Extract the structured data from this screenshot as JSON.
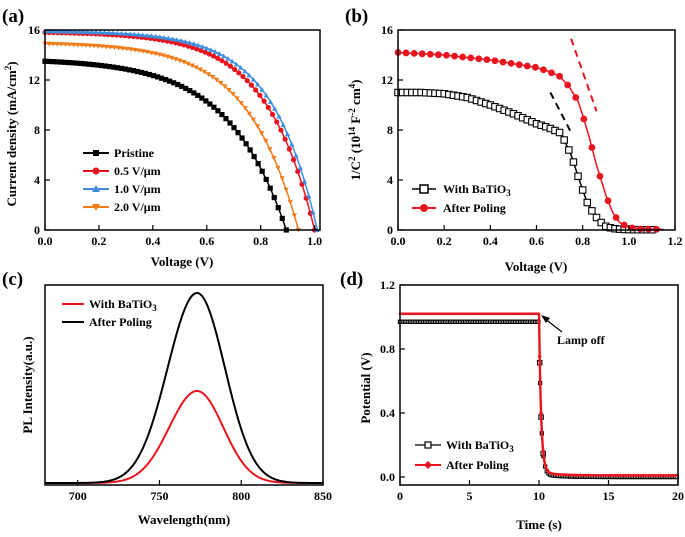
{
  "colors": {
    "black": "#000000",
    "red": "#e8141e",
    "blue": "#3d8fe0",
    "orange": "#f07c1a",
    "red_line": "#e62020"
  },
  "chart_data": [
    {
      "panel_label": "(a)",
      "type": "line",
      "xlabel": "Voltage (V)",
      "ylabel": "Current density (mA/cm²)",
      "ylabel_text": "Current density (mA/cm",
      "ylabel_sup": "2",
      "ylabel_end": ")",
      "xlim": [
        0.0,
        1.02
      ],
      "ylim": [
        0,
        16
      ],
      "xticks": [
        "0.0",
        "0.2",
        "0.4",
        "0.6",
        "0.8",
        "1.0"
      ],
      "yticks": [
        "0",
        "4",
        "8",
        "12",
        "16"
      ],
      "legend_position": "bottom-left",
      "series": [
        {
          "name": "Pristine",
          "marker": "square",
          "color": "black",
          "isc": 13.5,
          "voc": 0.895,
          "ideality": 4.2,
          "n_markers": 60
        },
        {
          "name": "0.5 V/μm",
          "marker": "circle",
          "color": "red",
          "isc": 15.8,
          "voc": 1.0,
          "ideality": 5.6,
          "n_markers": 64
        },
        {
          "name": "1.0 V/μm",
          "marker": "triangle-up",
          "color": "blue",
          "isc": 15.9,
          "voc": 1.01,
          "ideality": 6.0,
          "n_markers": 64
        },
        {
          "name": "2.0 V/μm",
          "marker": "triangle-down",
          "color": "orange",
          "isc": 14.9,
          "voc": 0.94,
          "ideality": 5.0,
          "n_markers": 62
        }
      ]
    },
    {
      "panel_label": "(b)",
      "type": "line",
      "xlabel": "Voltage (V)",
      "ylabel": "1/C² (10¹⁴ F⁻² cm⁴)",
      "ylabel_parts": [
        "1/C",
        "2",
        " (10",
        "14",
        " F",
        "-2",
        " cm",
        "4",
        ")"
      ],
      "xlim": [
        0.0,
        1.2
      ],
      "ylim": [
        0,
        16
      ],
      "xticks": [
        "0.0",
        "0.2",
        "0.4",
        "0.6",
        "0.8",
        "1.0",
        "1.2"
      ],
      "yticks": [
        "0",
        "4",
        "8",
        "12",
        "16"
      ],
      "legend_position": "bottom-left",
      "series": [
        {
          "name": "With BaTiO",
          "name_sub": "3",
          "marker": "open-square",
          "color": "black",
          "x": [
            0.0,
            0.1,
            0.2,
            0.3,
            0.4,
            0.5,
            0.6,
            0.65,
            0.7,
            0.72,
            0.75,
            0.78,
            0.8,
            0.82,
            0.85,
            0.88,
            0.9,
            0.93,
            0.97,
            1.0,
            1.05,
            1.1
          ],
          "y": [
            11.0,
            11.0,
            10.9,
            10.6,
            10.0,
            9.3,
            8.5,
            8.2,
            7.8,
            7.2,
            6.0,
            4.3,
            3.2,
            2.2,
            1.2,
            0.6,
            0.3,
            0.12,
            0.05,
            0.03,
            0.02,
            0.02
          ]
        },
        {
          "name": "After Poling",
          "marker": "circle",
          "color": "red",
          "x": [
            0.0,
            0.1,
            0.2,
            0.3,
            0.4,
            0.5,
            0.6,
            0.65,
            0.7,
            0.74,
            0.78,
            0.8,
            0.83,
            0.86,
            0.88,
            0.9,
            0.93,
            0.96,
            1.0,
            1.05,
            1.1,
            1.15
          ],
          "y": [
            14.2,
            14.1,
            14.0,
            13.8,
            13.6,
            13.3,
            13.0,
            12.7,
            12.3,
            11.5,
            10.3,
            9.2,
            7.3,
            5.2,
            4.0,
            2.8,
            1.4,
            0.6,
            0.2,
            0.08,
            0.06,
            0.05
          ]
        }
      ],
      "dashed_lines": [
        {
          "color": "black",
          "x": [
            0.66,
            0.75
          ],
          "y": [
            11.0,
            7.8
          ]
        },
        {
          "color": "red",
          "x": [
            0.75,
            0.86
          ],
          "y": [
            15.3,
            9.5
          ]
        }
      ]
    },
    {
      "panel_label": "(c)",
      "type": "line",
      "xlabel": "Wavelength(nm)",
      "ylabel": "PL Intensity(a.u.)",
      "xlim": [
        680,
        850
      ],
      "ylim": [
        0,
        1
      ],
      "xticks": [
        "700",
        "750",
        "800",
        "850"
      ],
      "xtick_values": [
        700,
        750,
        800,
        850
      ],
      "yticks": [],
      "legend_position": "top-left",
      "series": [
        {
          "name": "With BaTiO",
          "name_sub": "3",
          "color": "red",
          "peak_x": 773,
          "peak_y": 0.47,
          "baseline": 0.01,
          "sigma_left": 17,
          "sigma_right": 16
        },
        {
          "name": "After Poling",
          "color": "black",
          "peak_x": 773,
          "peak_y": 0.96,
          "baseline": 0.01,
          "sigma_left": 18,
          "sigma_right": 17
        }
      ]
    },
    {
      "panel_label": "(d)",
      "type": "line",
      "xlabel": "Time (s)",
      "ylabel": "Potential (V)",
      "xlim": [
        0,
        20
      ],
      "ylim": [
        -0.05,
        1.2
      ],
      "xticks": [
        "0",
        "5",
        "10",
        "15",
        "20"
      ],
      "xtick_values": [
        0,
        5,
        10,
        15,
        20
      ],
      "yticks": [
        "0.0",
        "0.4",
        "0.8",
        "1.2"
      ],
      "ytick_values": [
        0.0,
        0.4,
        0.8,
        1.2
      ],
      "legend_position": "bottom-center",
      "annotation": {
        "text": "Lamp off",
        "x": 10.0,
        "y": 1.0
      },
      "series": [
        {
          "name": "With BaTiO",
          "name_sub": "3",
          "marker": "open-square",
          "color": "black",
          "on_value": 0.97,
          "off_value": 0.0,
          "off_time": 10.0
        },
        {
          "name": "After Poling",
          "marker": "diamond",
          "color": "red",
          "on_value": 1.02,
          "off_value": 0.01,
          "off_time": 10.0
        }
      ]
    }
  ]
}
